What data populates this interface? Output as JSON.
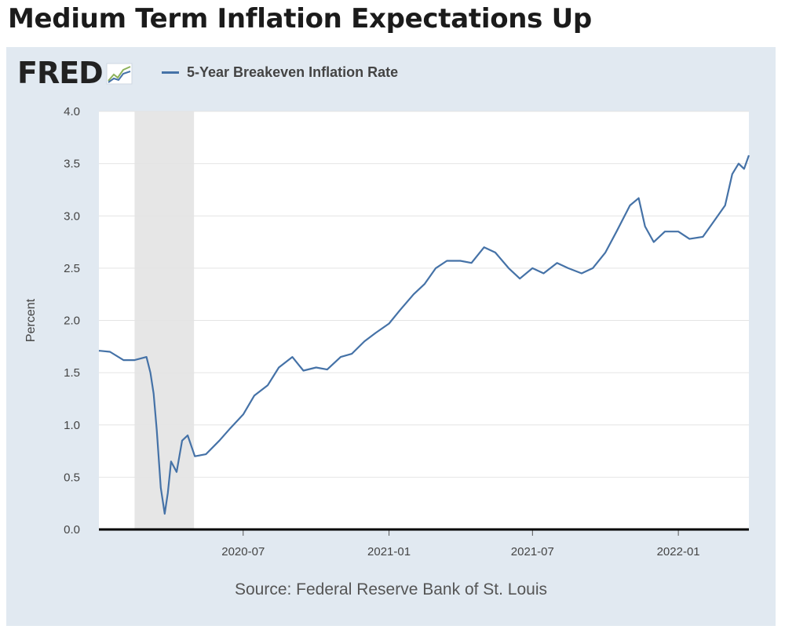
{
  "headline": "Medium Term Inflation Expectations Up",
  "logo": {
    "text": "FRED",
    "icon": "fred-chart-icon"
  },
  "source": "Source: Federal Reserve Bank of St. Louis",
  "colors": {
    "series": "#4572a7",
    "panel": "#e1e9f1",
    "recession": "#e6e6e6"
  },
  "chart_data": {
    "type": "line",
    "title": "",
    "xlabel": "",
    "ylabel": "Percent",
    "ylim": [
      0,
      4.0
    ],
    "yticks": [
      0.0,
      0.5,
      1.0,
      1.5,
      2.0,
      2.5,
      3.0,
      3.5,
      4.0
    ],
    "ytick_labels": [
      "0.0",
      "0.5",
      "1.0",
      "1.5",
      "2.0",
      "2.5",
      "3.0",
      "3.5",
      "4.0"
    ],
    "xlim": [
      "2020-01-01",
      "2022-03-31"
    ],
    "xticks": [
      "2020-07",
      "2021-01",
      "2021-07",
      "2022-01"
    ],
    "grid": true,
    "recession_shading": [
      {
        "start": "2020-02-15",
        "end": "2020-04-30"
      }
    ],
    "legend": {
      "position": "top-left"
    },
    "series": [
      {
        "name": "5-Year Breakeven Inflation Rate",
        "x": [
          "2020-01-01",
          "2020-01-15",
          "2020-02-01",
          "2020-02-15",
          "2020-03-01",
          "2020-03-06",
          "2020-03-10",
          "2020-03-14",
          "2020-03-19",
          "2020-03-24",
          "2020-03-28",
          "2020-04-01",
          "2020-04-08",
          "2020-04-15",
          "2020-04-22",
          "2020-05-01",
          "2020-05-15",
          "2020-06-01",
          "2020-06-15",
          "2020-07-01",
          "2020-07-15",
          "2020-08-01",
          "2020-08-15",
          "2020-09-01",
          "2020-09-15",
          "2020-10-01",
          "2020-10-15",
          "2020-11-01",
          "2020-11-15",
          "2020-12-01",
          "2020-12-15",
          "2021-01-01",
          "2021-01-15",
          "2021-02-01",
          "2021-02-15",
          "2021-03-01",
          "2021-03-15",
          "2021-04-01",
          "2021-04-15",
          "2021-05-01",
          "2021-05-15",
          "2021-06-01",
          "2021-06-15",
          "2021-07-01",
          "2021-07-15",
          "2021-08-01",
          "2021-08-15",
          "2021-09-01",
          "2021-09-15",
          "2021-10-01",
          "2021-10-15",
          "2021-11-01",
          "2021-11-12",
          "2021-11-20",
          "2021-12-01",
          "2021-12-15",
          "2022-01-01",
          "2022-01-15",
          "2022-02-01",
          "2022-02-15",
          "2022-03-01",
          "2022-03-10",
          "2022-03-18",
          "2022-03-25",
          "2022-03-31"
        ],
        "values": [
          1.71,
          1.7,
          1.62,
          1.62,
          1.65,
          1.5,
          1.3,
          0.95,
          0.4,
          0.15,
          0.35,
          0.65,
          0.55,
          0.85,
          0.9,
          0.7,
          0.72,
          0.85,
          0.97,
          1.1,
          1.28,
          1.38,
          1.55,
          1.65,
          1.52,
          1.55,
          1.53,
          1.65,
          1.68,
          1.8,
          1.88,
          1.97,
          2.1,
          2.25,
          2.35,
          2.5,
          2.57,
          2.57,
          2.55,
          2.7,
          2.65,
          2.5,
          2.4,
          2.5,
          2.45,
          2.55,
          2.5,
          2.45,
          2.5,
          2.65,
          2.85,
          3.1,
          3.17,
          2.9,
          2.75,
          2.85,
          2.85,
          2.78,
          2.8,
          2.95,
          3.1,
          3.4,
          3.5,
          3.45,
          3.58
        ]
      }
    ]
  }
}
